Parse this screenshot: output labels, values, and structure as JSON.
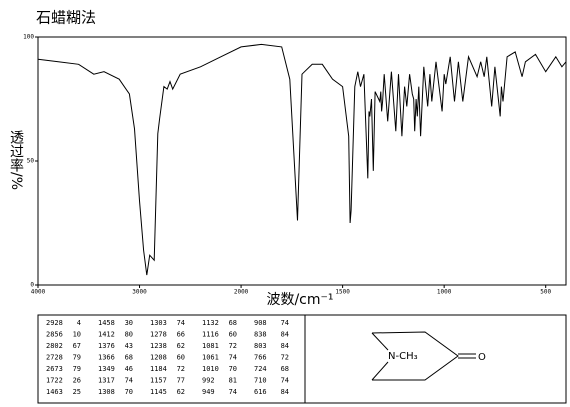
{
  "chart_data": {
    "type": "line",
    "title": "石蜡糊法",
    "x_label": "波数/cm⁻¹",
    "y_label": "透过率/%",
    "x": [
      4000,
      3800,
      3600,
      3450,
      3350,
      3200,
      3100,
      3050,
      3000,
      2960,
      2928,
      2900,
      2856,
      2820,
      2802,
      2760,
      2728,
      2700,
      2673,
      2600,
      2400,
      2200,
      2000,
      1900,
      1800,
      1760,
      1722,
      1700,
      1650,
      1600,
      1550,
      1500,
      1470,
      1463,
      1458,
      1440,
      1425,
      1412,
      1395,
      1376,
      1370,
      1366,
      1358,
      1349,
      1340,
      1317,
      1312,
      1308,
      1303,
      1295,
      1278,
      1260,
      1238,
      1225,
      1208,
      1195,
      1184,
      1170,
      1157,
      1150,
      1145,
      1138,
      1132,
      1125,
      1116,
      1100,
      1081,
      1070,
      1061,
      1040,
      1010,
      1000,
      992,
      970,
      949,
      930,
      908,
      880,
      838,
      820,
      803,
      790,
      766,
      750,
      724,
      718,
      710,
      690,
      650,
      616,
      600,
      550,
      500,
      450,
      420,
      400
    ],
    "series": [
      {
        "color": "#000000",
        "values": [
          91,
          90,
          89,
          85,
          86,
          83,
          77,
          63,
          34,
          14,
          4,
          12,
          10,
          61,
          67,
          80,
          79,
          82,
          79,
          85,
          88,
          92,
          96,
          97,
          96,
          83,
          26,
          85,
          89,
          89,
          83,
          80,
          60,
          25,
          30,
          80,
          86,
          80,
          85,
          43,
          70,
          68,
          75,
          46,
          78,
          74,
          78,
          70,
          74,
          85,
          66,
          86,
          62,
          85,
          60,
          80,
          72,
          85,
          77,
          75,
          62,
          75,
          68,
          80,
          60,
          88,
          72,
          85,
          74,
          90,
          70,
          85,
          81,
          92,
          74,
          90,
          74,
          92,
          84,
          90,
          84,
          92,
          72,
          88,
          68,
          80,
          74,
          92,
          94,
          84,
          90,
          93,
          86,
          92,
          88,
          90
        ]
      }
    ],
    "xlim": [
      4000,
      400
    ],
    "ylim": [
      0,
      100
    ],
    "xticks": [
      4000,
      3000,
      2000,
      1500,
      1000,
      500
    ],
    "yticks": [
      0,
      50,
      100
    ]
  },
  "peak_table": {
    "columns": [
      [
        [
          "2928",
          "4"
        ],
        [
          "2856",
          "10"
        ],
        [
          "2802",
          "67"
        ],
        [
          "2728",
          "79"
        ],
        [
          "2673",
          "79"
        ],
        [
          "1722",
          "26"
        ],
        [
          "1463",
          "25"
        ]
      ],
      [
        [
          "1458",
          "30"
        ],
        [
          "1412",
          "80"
        ],
        [
          "1376",
          "43"
        ],
        [
          "1366",
          "68"
        ],
        [
          "1349",
          "46"
        ],
        [
          "1317",
          "74"
        ],
        [
          "1308",
          "70"
        ]
      ],
      [
        [
          "1303",
          "74"
        ],
        [
          "1278",
          "66"
        ],
        [
          "1238",
          "62"
        ],
        [
          "1208",
          "60"
        ],
        [
          "1184",
          "72"
        ],
        [
          "1157",
          "77"
        ],
        [
          "1145",
          "62"
        ]
      ],
      [
        [
          "1132",
          "68"
        ],
        [
          "1116",
          "60"
        ],
        [
          "1081",
          "72"
        ],
        [
          "1061",
          "74"
        ],
        [
          "1010",
          "70"
        ],
        [
          "992",
          "81"
        ],
        [
          "949",
          "74"
        ]
      ],
      [
        [
          "908",
          "74"
        ],
        [
          "838",
          "84"
        ],
        [
          "803",
          "84"
        ],
        [
          "766",
          "72"
        ],
        [
          "724",
          "68"
        ],
        [
          "710",
          "74"
        ],
        [
          "616",
          "84"
        ]
      ]
    ]
  },
  "structure": {
    "amine_label": "N-CH₃",
    "oxygen_label": "O"
  }
}
